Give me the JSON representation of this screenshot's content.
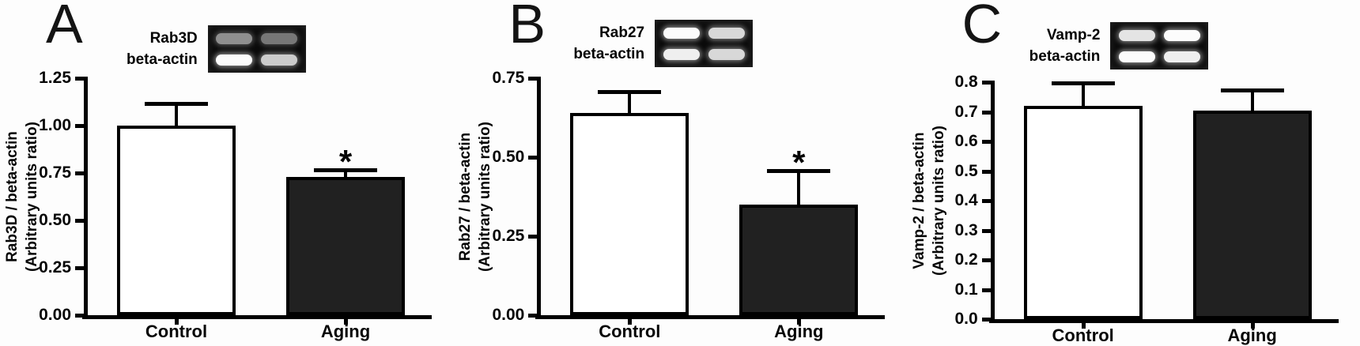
{
  "figure": {
    "background": "#fdfdfd",
    "axis_color": "#000000",
    "text_color": "#000000",
    "legend": "none",
    "grid": "off"
  },
  "chart_data": [
    {
      "type": "bar",
      "panel_label": "A",
      "gel_inset": {
        "row_labels": [
          "Rab3D",
          "beta-actin"
        ],
        "lanes": 2,
        "band_opacities": [
          [
            0.55,
            0.45
          ],
          [
            1.0,
            0.8
          ]
        ]
      },
      "ylabel": "Rab3D / beta-actin",
      "ylabel2": "(Arbitrary units ratio)",
      "categories": [
        "Control",
        "Aging"
      ],
      "values": [
        1.0,
        0.73
      ],
      "error_tops": [
        1.12,
        0.77
      ],
      "significance": [
        "",
        "*"
      ],
      "ylim": [
        0,
        1.25
      ],
      "ytick_labels": [
        "0.00",
        "0.25",
        "0.50",
        "0.75",
        "1.00",
        "1.25"
      ],
      "bar_fills": [
        "#ffffff",
        "#212121"
      ],
      "bar_border": "#000000"
    },
    {
      "type": "bar",
      "panel_label": "B",
      "gel_inset": {
        "row_labels": [
          "Rab27",
          "beta-actin"
        ],
        "lanes": 2,
        "band_opacities": [
          [
            1.0,
            0.85
          ],
          [
            0.95,
            0.85
          ]
        ]
      },
      "ylabel": "Rab27 / beta-actin",
      "ylabel2": "(Arbitrary units ratio)",
      "categories": [
        "Control",
        "Aging"
      ],
      "values": [
        0.64,
        0.35
      ],
      "error_tops": [
        0.71,
        0.46
      ],
      "significance": [
        "",
        "*"
      ],
      "ylim": [
        0,
        0.75
      ],
      "ytick_labels": [
        "0.00",
        "0.25",
        "0.50",
        "0.75"
      ],
      "bar_fills": [
        "#ffffff",
        "#212121"
      ],
      "bar_border": "#000000"
    },
    {
      "type": "bar",
      "panel_label": "C",
      "gel_inset": {
        "row_labels": [
          "Vamp-2",
          "beta-actin"
        ],
        "lanes": 2,
        "band_opacities": [
          [
            0.9,
            1.0
          ],
          [
            1.0,
            0.95
          ]
        ]
      },
      "ylabel": "Vamp-2 / beta-actin",
      "ylabel2": "(Arbitrary units ratio)",
      "categories": [
        "Control",
        "Aging"
      ],
      "values": [
        0.72,
        0.705
      ],
      "error_tops": [
        0.8,
        0.775
      ],
      "significance": [
        "",
        ""
      ],
      "ylim": [
        0,
        0.8
      ],
      "ytick_labels": [
        "0.0",
        "0.1",
        "0.2",
        "0.3",
        "0.4",
        "0.5",
        "0.6",
        "0.7",
        "0.8"
      ],
      "bar_fills": [
        "#ffffff",
        "#212121"
      ],
      "bar_border": "#000000"
    }
  ]
}
